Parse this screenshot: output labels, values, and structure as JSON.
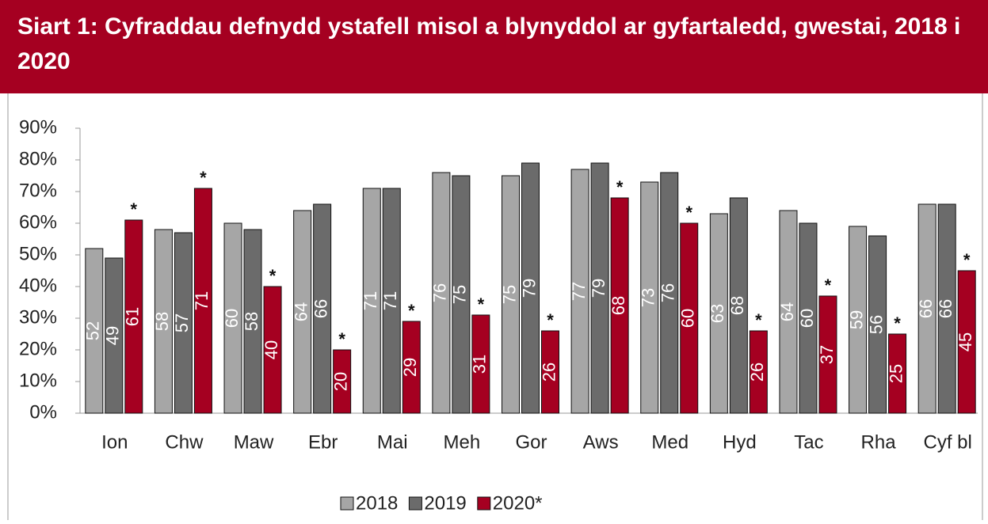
{
  "chart_data": {
    "type": "bar",
    "title": "Siart 1: Cyfraddau defnydd ystafell misol a blynyddol ar gyfartaledd, gwestai, 2018 i 2020",
    "categories": [
      "Ion",
      "Chw",
      "Maw",
      "Ebr",
      "Mai",
      "Meh",
      "Gor",
      "Aws",
      "Med",
      "Hyd",
      "Tac",
      "Rha",
      "Cyf bl"
    ],
    "series": [
      {
        "name": "2018",
        "color": "#a6a6a6",
        "values": [
          52,
          58,
          60,
          64,
          71,
          76,
          75,
          77,
          73,
          63,
          64,
          59,
          66
        ]
      },
      {
        "name": "2019",
        "color": "#6b6b6b",
        "values": [
          49,
          57,
          58,
          66,
          71,
          75,
          79,
          79,
          76,
          68,
          60,
          56,
          66
        ]
      },
      {
        "name": "2020*",
        "color": "#a50021",
        "values": [
          61,
          71,
          40,
          20,
          29,
          31,
          26,
          68,
          60,
          26,
          37,
          25,
          45
        ],
        "annotation": "*"
      }
    ],
    "ylim": [
      0,
      90
    ],
    "yticks": [
      {
        "value": 0,
        "label": "0%"
      },
      {
        "value": 10,
        "label": "10%"
      },
      {
        "value": 20,
        "label": "20%"
      },
      {
        "value": 30,
        "label": "30%"
      },
      {
        "value": 40,
        "label": "40%"
      },
      {
        "value": 50,
        "label": "50%"
      },
      {
        "value": 60,
        "label": "60%"
      },
      {
        "value": 70,
        "label": "70%"
      },
      {
        "value": 80,
        "label": "80%"
      },
      {
        "value": 90,
        "label": "90%"
      }
    ],
    "legend": "bottom"
  }
}
